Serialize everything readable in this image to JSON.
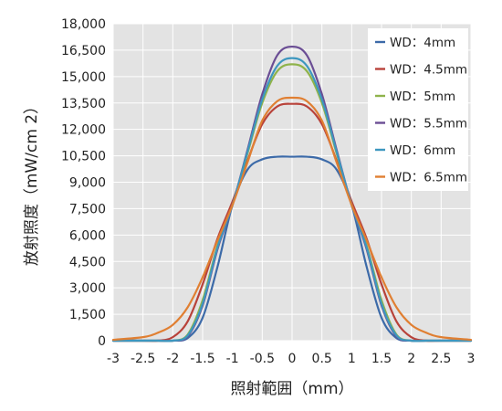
{
  "chart_data": {
    "type": "line",
    "xlabel": "照射範囲（mm）",
    "ylabel": "放射照度（mW/cm 2）",
    "xlim": [
      -3,
      3
    ],
    "ylim": [
      0,
      18000
    ],
    "x_ticks": [
      "-3",
      "-2.5",
      "-2",
      "-1.5",
      "-1",
      "-0.5",
      "0",
      "0.5",
      "1",
      "1.5",
      "2",
      "2.5",
      "3"
    ],
    "y_ticks": [
      "0",
      "1,500",
      "3,000",
      "4,500",
      "6,000",
      "7,500",
      "9,000",
      "10,500",
      "12,000",
      "13,500",
      "15,000",
      "16,500",
      "18,000"
    ],
    "grid": true,
    "legend_position": "top-right",
    "x": [
      -3,
      -2.5,
      -2.25,
      -2,
      -1.75,
      -1.5,
      -1.25,
      -1,
      -0.75,
      -0.5,
      -0.25,
      0,
      0.25,
      0.5,
      0.75,
      1,
      1.25,
      1.5,
      1.75,
      2,
      2.25,
      2.5,
      3
    ],
    "series": [
      {
        "name": "WD：4mm",
        "color": "#3c6aa8",
        "values": [
          0,
          0,
          0,
          0,
          150,
          1300,
          4200,
          7700,
          9700,
          10300,
          10450,
          10450,
          10450,
          10300,
          9700,
          7700,
          4200,
          1300,
          150,
          0,
          0,
          0,
          0
        ]
      },
      {
        "name": "WD：4.5mm",
        "color": "#b8423a",
        "values": [
          0,
          0,
          0,
          200,
          1100,
          3200,
          5800,
          7900,
          10200,
          12300,
          13300,
          13450,
          13300,
          12300,
          10200,
          7900,
          5800,
          3200,
          1100,
          200,
          0,
          0,
          0
        ]
      },
      {
        "name": "WD：5mm",
        "color": "#8fb34b",
        "values": [
          0,
          0,
          0,
          0,
          350,
          2300,
          5400,
          7700,
          10600,
          13500,
          15300,
          15700,
          15300,
          13500,
          10600,
          7700,
          5400,
          2300,
          350,
          0,
          0,
          0,
          0
        ]
      },
      {
        "name": "WD：5.5mm",
        "color": "#6a4d94",
        "values": [
          0,
          0,
          0,
          0,
          250,
          2000,
          5200,
          7700,
          10800,
          14000,
          16200,
          16700,
          16200,
          14000,
          10800,
          7700,
          5200,
          2000,
          250,
          0,
          0,
          0,
          0
        ]
      },
      {
        "name": "WD：6mm",
        "color": "#3d97bf",
        "values": [
          0,
          0,
          0,
          0,
          300,
          2100,
          5300,
          7700,
          10700,
          13700,
          15600,
          16050,
          15600,
          13700,
          10700,
          7700,
          5300,
          2100,
          300,
          0,
          0,
          0,
          0
        ]
      },
      {
        "name": "WD：6.5mm",
        "color": "#e07f32",
        "values": [
          50,
          200,
          450,
          900,
          1900,
          3600,
          5700,
          7700,
          10100,
          12500,
          13600,
          13800,
          13600,
          12500,
          10100,
          7700,
          5700,
          3600,
          1900,
          900,
          450,
          200,
          50
        ]
      }
    ]
  }
}
